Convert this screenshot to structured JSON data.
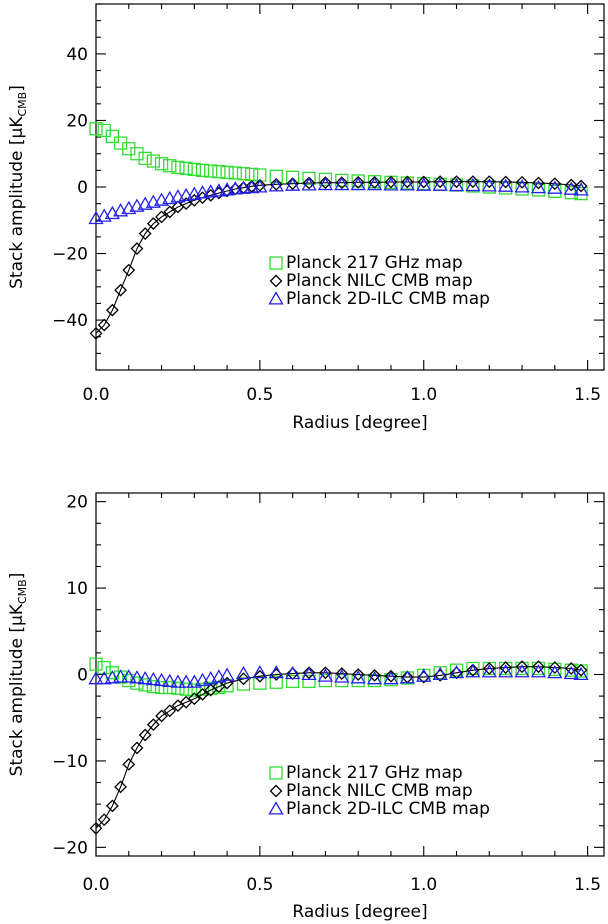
{
  "chart_data": [
    {
      "type": "line",
      "xlabel": "Radius [degree]",
      "ylabel": "Stack amplitude [μK",
      "ylabel_sub": "CMB",
      "ylabel_close": "]",
      "xlim": [
        0.0,
        1.55
      ],
      "ylim": [
        -55,
        55
      ],
      "x_ticks": [
        0.0,
        0.5,
        1.0,
        1.5
      ],
      "x_tick_labels": [
        "0.0",
        "0.5",
        "1.0",
        "1.5"
      ],
      "y_ticks": [
        -40,
        -20,
        0,
        20,
        40
      ],
      "y_tick_labels": [
        "−40",
        "−20",
        "0",
        "20",
        "40"
      ],
      "legend_position": "lower-right",
      "series": [
        {
          "name": "Planck 217 GHz map",
          "marker": "square",
          "color": "#33dd33",
          "x": [
            0.0,
            0.025,
            0.05,
            0.075,
            0.1,
            0.125,
            0.15,
            0.175,
            0.2,
            0.225,
            0.25,
            0.275,
            0.3,
            0.325,
            0.35,
            0.375,
            0.4,
            0.425,
            0.45,
            0.475,
            0.5,
            0.55,
            0.6,
            0.65,
            0.7,
            0.75,
            0.8,
            0.85,
            0.9,
            0.95,
            1.0,
            1.05,
            1.1,
            1.15,
            1.2,
            1.25,
            1.3,
            1.35,
            1.4,
            1.45,
            1.48
          ],
          "y": [
            17.5,
            17.0,
            15.2,
            13.2,
            11.5,
            10.0,
            8.6,
            7.8,
            7.0,
            6.4,
            5.9,
            5.6,
            5.3,
            5.0,
            4.8,
            4.6,
            4.4,
            4.2,
            4.0,
            3.8,
            3.6,
            3.2,
            2.9,
            2.6,
            2.3,
            2.0,
            1.8,
            1.6,
            1.4,
            1.2,
            1.0,
            0.8,
            0.6,
            0.3,
            0.0,
            -0.3,
            -0.6,
            -0.9,
            -1.3,
            -1.7,
            -2.0
          ],
          "connected": false
        },
        {
          "name": "Planck NILC CMB map",
          "marker": "diamond",
          "color": "#000000",
          "x": [
            0.0,
            0.025,
            0.05,
            0.075,
            0.1,
            0.125,
            0.15,
            0.175,
            0.2,
            0.225,
            0.25,
            0.275,
            0.3,
            0.325,
            0.35,
            0.375,
            0.4,
            0.425,
            0.45,
            0.475,
            0.5,
            0.55,
            0.6,
            0.65,
            0.7,
            0.75,
            0.8,
            0.85,
            0.9,
            0.95,
            1.0,
            1.05,
            1.1,
            1.15,
            1.2,
            1.25,
            1.3,
            1.35,
            1.4,
            1.45,
            1.48
          ],
          "y": [
            -44.0,
            -41.5,
            -37.0,
            -31.0,
            -25.0,
            -18.5,
            -14.0,
            -11.0,
            -9.0,
            -7.5,
            -6.0,
            -5.0,
            -4.0,
            -3.2,
            -2.5,
            -1.8,
            -1.2,
            -0.6,
            -0.2,
            0.2,
            0.5,
            0.8,
            1.0,
            1.2,
            1.3,
            1.3,
            1.4,
            1.4,
            1.5,
            1.5,
            1.5,
            1.6,
            1.6,
            1.6,
            1.6,
            1.5,
            1.4,
            1.2,
            1.0,
            0.6,
            0.3
          ],
          "connected": true
        },
        {
          "name": "Planck 2D-ILC CMB map",
          "marker": "triangle",
          "color": "#2222ee",
          "x": [
            0.0,
            0.025,
            0.05,
            0.075,
            0.1,
            0.125,
            0.15,
            0.175,
            0.2,
            0.225,
            0.25,
            0.275,
            0.3,
            0.325,
            0.35,
            0.375,
            0.4,
            0.425,
            0.45,
            0.475,
            0.5,
            0.55,
            0.6,
            0.65,
            0.7,
            0.75,
            0.8,
            0.85,
            0.9,
            0.95,
            1.0,
            1.05,
            1.1,
            1.15,
            1.2,
            1.25,
            1.3,
            1.35,
            1.4,
            1.45,
            1.48
          ],
          "y": [
            -9.5,
            -8.8,
            -8.0,
            -7.2,
            -6.5,
            -5.8,
            -5.2,
            -4.6,
            -4.0,
            -3.5,
            -3.0,
            -2.6,
            -2.2,
            -1.8,
            -1.5,
            -1.2,
            -0.9,
            -0.6,
            -0.4,
            -0.2,
            0.0,
            0.3,
            0.5,
            0.6,
            0.7,
            0.7,
            0.7,
            0.7,
            0.6,
            0.6,
            0.5,
            0.5,
            0.4,
            0.4,
            0.3,
            0.2,
            0.0,
            -0.2,
            -0.4,
            -0.7,
            -0.9
          ],
          "connected": false
        }
      ]
    },
    {
      "type": "line",
      "xlabel": "Radius [degree]",
      "ylabel": "Stack amplitude [μK",
      "ylabel_sub": "CMB",
      "ylabel_close": "]",
      "xlim": [
        0.0,
        1.55
      ],
      "ylim": [
        -21,
        21
      ],
      "x_ticks": [
        0.0,
        0.5,
        1.0,
        1.5
      ],
      "x_tick_labels": [
        "0.0",
        "0.5",
        "1.0",
        "1.5"
      ],
      "y_ticks": [
        -20,
        -10,
        0,
        10,
        20
      ],
      "y_tick_labels": [
        "−20",
        "−10",
        "0",
        "10",
        "20"
      ],
      "legend_position": "lower-right",
      "series": [
        {
          "name": "Planck 217 GHz map",
          "marker": "square",
          "color": "#33dd33",
          "x": [
            0.0,
            0.025,
            0.05,
            0.075,
            0.1,
            0.125,
            0.15,
            0.175,
            0.2,
            0.225,
            0.25,
            0.275,
            0.3,
            0.325,
            0.35,
            0.375,
            0.4,
            0.45,
            0.5,
            0.55,
            0.6,
            0.65,
            0.7,
            0.75,
            0.8,
            0.85,
            0.9,
            0.95,
            1.0,
            1.05,
            1.1,
            1.15,
            1.2,
            1.25,
            1.3,
            1.35,
            1.4,
            1.45,
            1.48
          ],
          "y": [
            1.2,
            0.8,
            0.2,
            -0.3,
            -0.7,
            -1.0,
            -1.2,
            -1.4,
            -1.5,
            -1.5,
            -1.6,
            -1.7,
            -1.8,
            -1.7,
            -1.6,
            -1.5,
            -1.3,
            -1.1,
            -1.0,
            -0.9,
            -0.8,
            -0.8,
            -0.7,
            -0.7,
            -0.7,
            -0.7,
            -0.6,
            -0.4,
            -0.1,
            0.2,
            0.5,
            0.7,
            0.7,
            0.7,
            0.7,
            0.7,
            0.6,
            0.5,
            0.4
          ],
          "connected": false
        },
        {
          "name": "Planck NILC CMB map",
          "marker": "diamond",
          "color": "#000000",
          "x": [
            0.0,
            0.025,
            0.05,
            0.075,
            0.1,
            0.125,
            0.15,
            0.175,
            0.2,
            0.225,
            0.25,
            0.275,
            0.3,
            0.325,
            0.35,
            0.375,
            0.4,
            0.45,
            0.5,
            0.55,
            0.6,
            0.65,
            0.7,
            0.75,
            0.8,
            0.85,
            0.9,
            0.95,
            1.0,
            1.05,
            1.1,
            1.15,
            1.2,
            1.25,
            1.3,
            1.35,
            1.4,
            1.45,
            1.48
          ],
          "y": [
            -17.8,
            -16.8,
            -15.2,
            -13.0,
            -10.4,
            -8.5,
            -7.0,
            -5.8,
            -4.8,
            -4.2,
            -3.6,
            -3.2,
            -2.8,
            -2.3,
            -1.8,
            -1.4,
            -1.0,
            -0.5,
            -0.2,
            0.0,
            0.1,
            0.2,
            0.2,
            0.1,
            0.0,
            -0.1,
            -0.2,
            -0.3,
            -0.3,
            -0.1,
            0.2,
            0.5,
            0.7,
            0.8,
            0.9,
            0.9,
            0.8,
            0.7,
            0.5
          ],
          "connected": true
        },
        {
          "name": "Planck 2D-ILC CMB map",
          "marker": "triangle",
          "color": "#2222ee",
          "x": [
            0.0,
            0.025,
            0.05,
            0.075,
            0.1,
            0.125,
            0.15,
            0.175,
            0.2,
            0.225,
            0.25,
            0.275,
            0.3,
            0.325,
            0.35,
            0.375,
            0.4,
            0.45,
            0.5,
            0.55,
            0.6,
            0.65,
            0.7,
            0.75,
            0.8,
            0.85,
            0.9,
            0.95,
            1.0,
            1.05,
            1.1,
            1.15,
            1.2,
            1.25,
            1.3,
            1.35,
            1.4,
            1.45,
            1.48
          ],
          "y": [
            -0.5,
            -0.5,
            -0.4,
            -0.3,
            -0.3,
            -0.4,
            -0.5,
            -0.6,
            -0.7,
            -0.8,
            -0.9,
            -0.9,
            -0.9,
            -0.7,
            -0.5,
            -0.3,
            -0.1,
            0.1,
            0.2,
            0.2,
            0.1,
            0.0,
            -0.2,
            -0.3,
            -0.4,
            -0.5,
            -0.5,
            -0.4,
            -0.2,
            0.0,
            0.2,
            0.3,
            0.3,
            0.3,
            0.3,
            0.3,
            0.2,
            0.1,
            0.0
          ],
          "connected": false
        }
      ]
    }
  ]
}
